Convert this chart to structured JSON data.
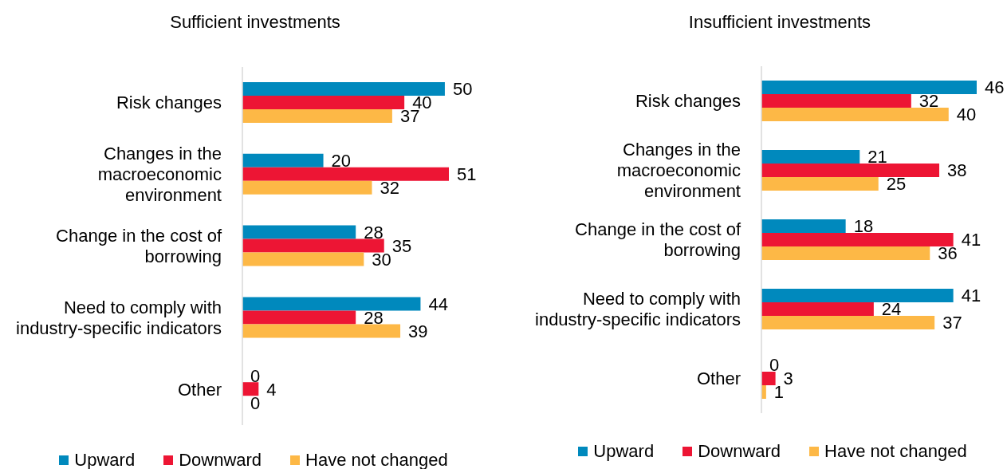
{
  "chart_data": [
    {
      "type": "bar",
      "orientation": "horizontal",
      "title": "Sufficient investments",
      "categories": [
        "Risk changes",
        "Changes in the macroeconomic environment",
        "Change in the cost of borrowing",
        "Need to comply with industry-specific indicators",
        "Other"
      ],
      "series": [
        {
          "name": "Upward",
          "color": "#0089bd",
          "values": [
            50,
            20,
            28,
            44,
            0
          ]
        },
        {
          "name": "Downward",
          "color": "#ed1534",
          "values": [
            40,
            51,
            35,
            28,
            4
          ]
        },
        {
          "name": "Have not changed",
          "color": "#fdb846",
          "values": [
            37,
            32,
            30,
            39,
            0
          ]
        }
      ],
      "data_labels": true,
      "legend": "bottom",
      "tick_labels": "y"
    },
    {
      "type": "bar",
      "orientation": "horizontal",
      "title": "Insufficient investments",
      "categories": [
        "Risk changes",
        "Changes in the macroeconomic environment",
        "Change in the cost of borrowing",
        "Need to comply with industry-specific indicators",
        "Other"
      ],
      "series": [
        {
          "name": "Upward",
          "color": "#0089bd",
          "values": [
            46,
            21,
            18,
            41,
            0
          ]
        },
        {
          "name": "Downward",
          "color": "#ed1534",
          "values": [
            32,
            38,
            41,
            24,
            3
          ]
        },
        {
          "name": "Have not changed",
          "color": "#fdb846",
          "values": [
            40,
            25,
            36,
            37,
            1
          ]
        }
      ],
      "data_labels": true,
      "legend": "bottom",
      "tick_labels": "y"
    }
  ]
}
